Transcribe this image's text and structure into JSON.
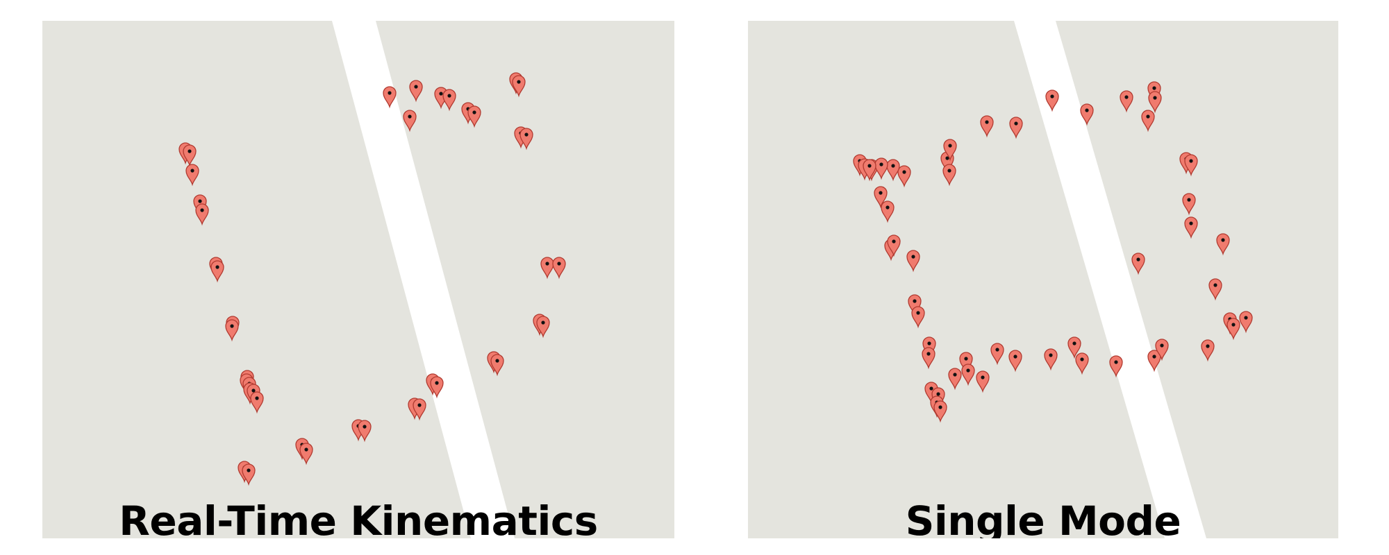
{
  "colors": {
    "land": "#e4e4de",
    "road": "#ffffff",
    "marker_fill": "#f07b6e",
    "marker_stroke": "#b03a30",
    "marker_dot": "#111111"
  },
  "icons": {
    "marker": "map-pin-icon"
  },
  "panels": [
    {
      "id": "rtk",
      "label": "Real-Time Kinematics",
      "marker_count": 42
    },
    {
      "id": "single",
      "label": "Single Mode",
      "marker_count": 54
    }
  ]
}
